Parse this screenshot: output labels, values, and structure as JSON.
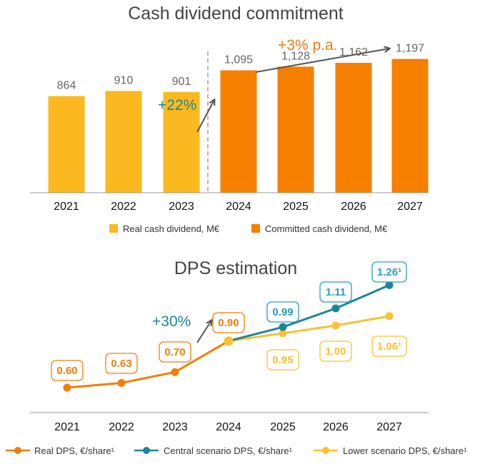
{
  "colors": {
    "real_bar": "#fbb91f",
    "committed_bar": "#f77f00",
    "real_line": "#f07f09",
    "central_line": "#1d8597",
    "central_label": "#2a9bc7",
    "lower_line": "#fbc132",
    "teal_text": "#1d8597",
    "arrow": "#555555",
    "axis": "#999999"
  },
  "chart_data": [
    {
      "type": "bar",
      "title": "Cash dividend commitment",
      "categories": [
        "2021",
        "2022",
        "2023",
        "2024",
        "2025",
        "2026",
        "2027"
      ],
      "series": [
        {
          "name": "Real cash dividend, M€",
          "values": [
            864,
            910,
            901,
            null,
            null,
            null,
            null
          ],
          "labels": [
            "864",
            "910",
            "901",
            "",
            "",
            "",
            ""
          ]
        },
        {
          "name": "Committed cash dividend, M€",
          "values": [
            null,
            null,
            null,
            1095,
            1128,
            1162,
            1197
          ],
          "labels": [
            "",
            "",
            "",
            "1,095",
            "1,128",
            "1,162",
            "1,197"
          ]
        }
      ],
      "ylim": [
        0,
        1350
      ],
      "legend": "bottom",
      "grid": false,
      "annotations": [
        {
          "text": "+22%",
          "between": [
            "2023",
            "2024"
          ]
        },
        {
          "text": "+3% p.a.",
          "between": [
            "2024",
            "2027"
          ]
        }
      ]
    },
    {
      "type": "line",
      "title": "DPS estimation",
      "categories": [
        "2021",
        "2022",
        "2023",
        "2024",
        "2025",
        "2026",
        "2027"
      ],
      "series": [
        {
          "name": "Real DPS, €/share¹",
          "values": [
            0.6,
            0.63,
            0.7,
            0.9,
            null,
            null,
            null
          ],
          "labels": [
            "0.60",
            "0.63",
            "0.70",
            "0.90",
            "",
            "",
            ""
          ]
        },
        {
          "name": "Central scenario DPS, €/share¹",
          "values": [
            null,
            null,
            null,
            0.9,
            0.99,
            1.11,
            1.26
          ],
          "labels": [
            "",
            "",
            "",
            "",
            "0.99",
            "1.11",
            "1.26¹"
          ]
        },
        {
          "name": "Lower scenario DPS, €/share¹",
          "values": [
            null,
            null,
            null,
            0.9,
            0.95,
            1.0,
            1.06
          ],
          "labels": [
            "",
            "",
            "",
            "",
            "0.95",
            "1.00",
            "1.06¹"
          ]
        }
      ],
      "legend": "bottom",
      "grid": false,
      "annotations": [
        {
          "text": "+30%",
          "between": [
            "2023",
            "2024"
          ]
        }
      ]
    }
  ]
}
